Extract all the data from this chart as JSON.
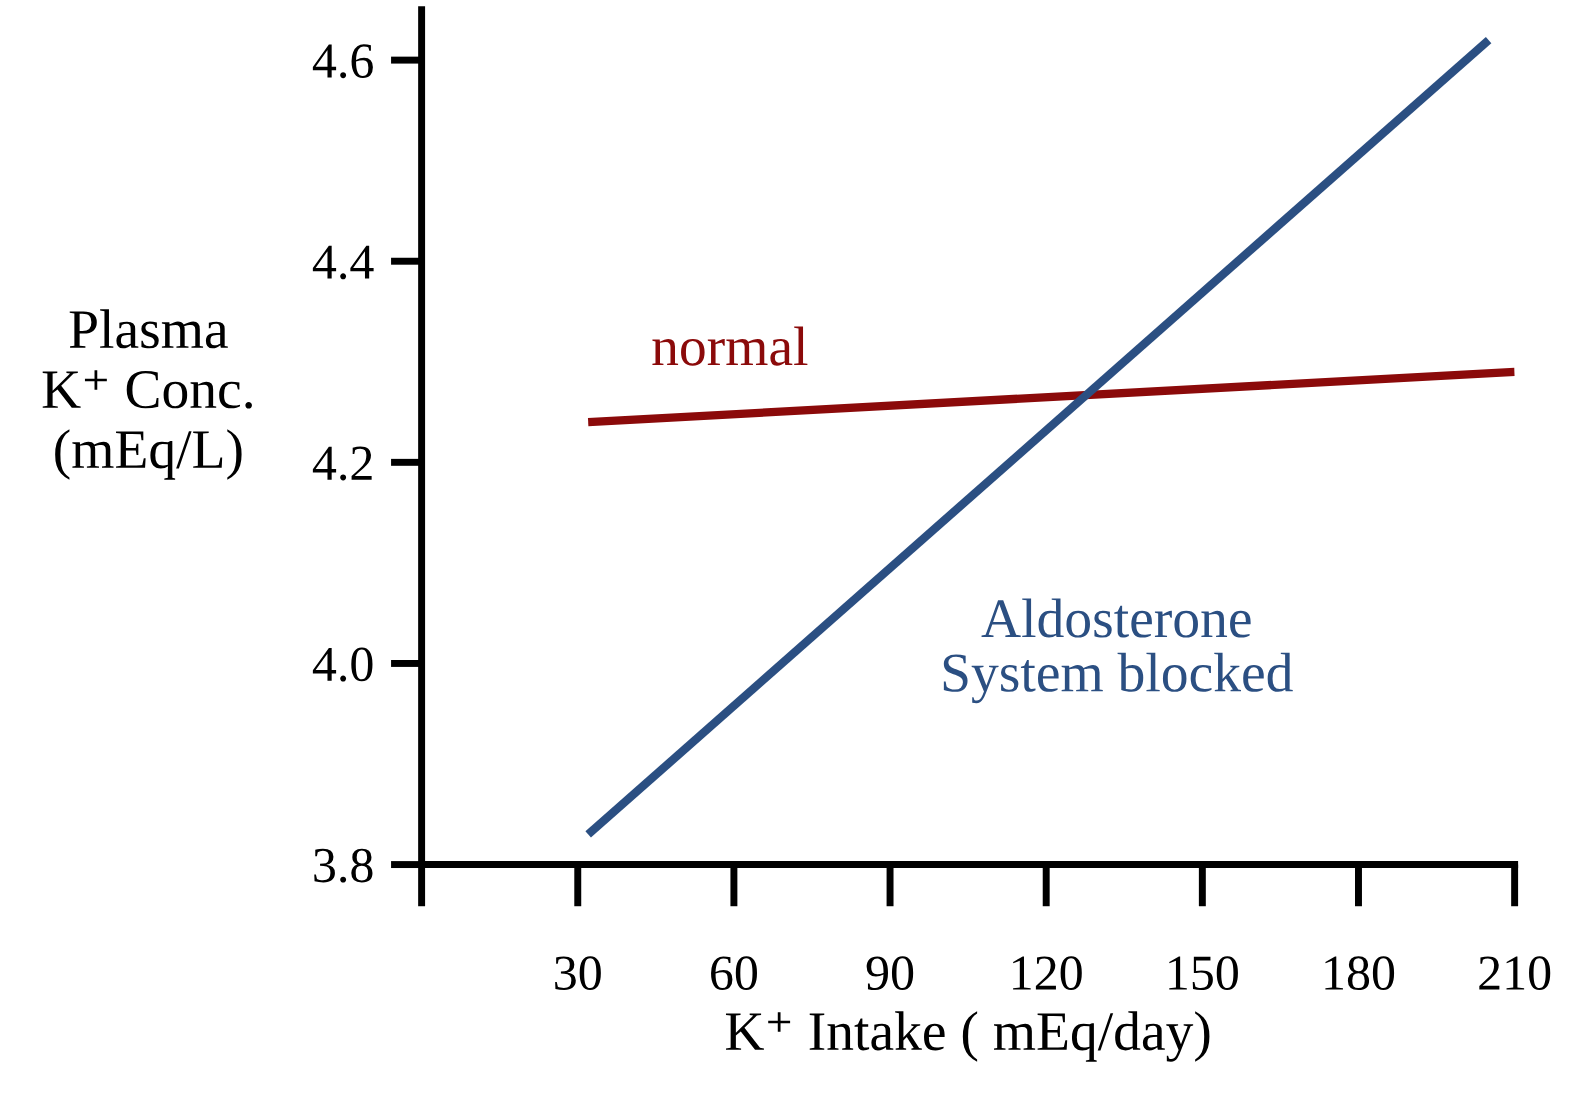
{
  "chart_data": {
    "type": "line",
    "xlabel": "K⁺ Intake ( mEq/day)",
    "ylabel": "Plasma\nK⁺ Conc.\n(mEq/L)",
    "series": [
      {
        "name": "normal",
        "color": "#8b0a0a",
        "x": [
          32,
          210
        ],
        "values": [
          4.24,
          4.29
        ]
      },
      {
        "name": "Aldosterone\nSystem blocked",
        "color": "#2b4f82",
        "x": [
          32,
          205
        ],
        "values": [
          3.83,
          4.62
        ]
      }
    ],
    "xlim": [
      0,
      210
    ],
    "xticks": [
      {
        "value": 0,
        "label": null
      },
      30,
      60,
      90,
      120,
      150,
      180,
      210
    ],
    "ylim": [
      3.8,
      4.65
    ],
    "yticks": [
      3.8,
      {
        "value": 4.0,
        "label": "4.0"
      },
      4.2,
      4.4,
      4.6
    ],
    "grid": false,
    "legend": false,
    "marker": "none",
    "line_style": "solid"
  }
}
